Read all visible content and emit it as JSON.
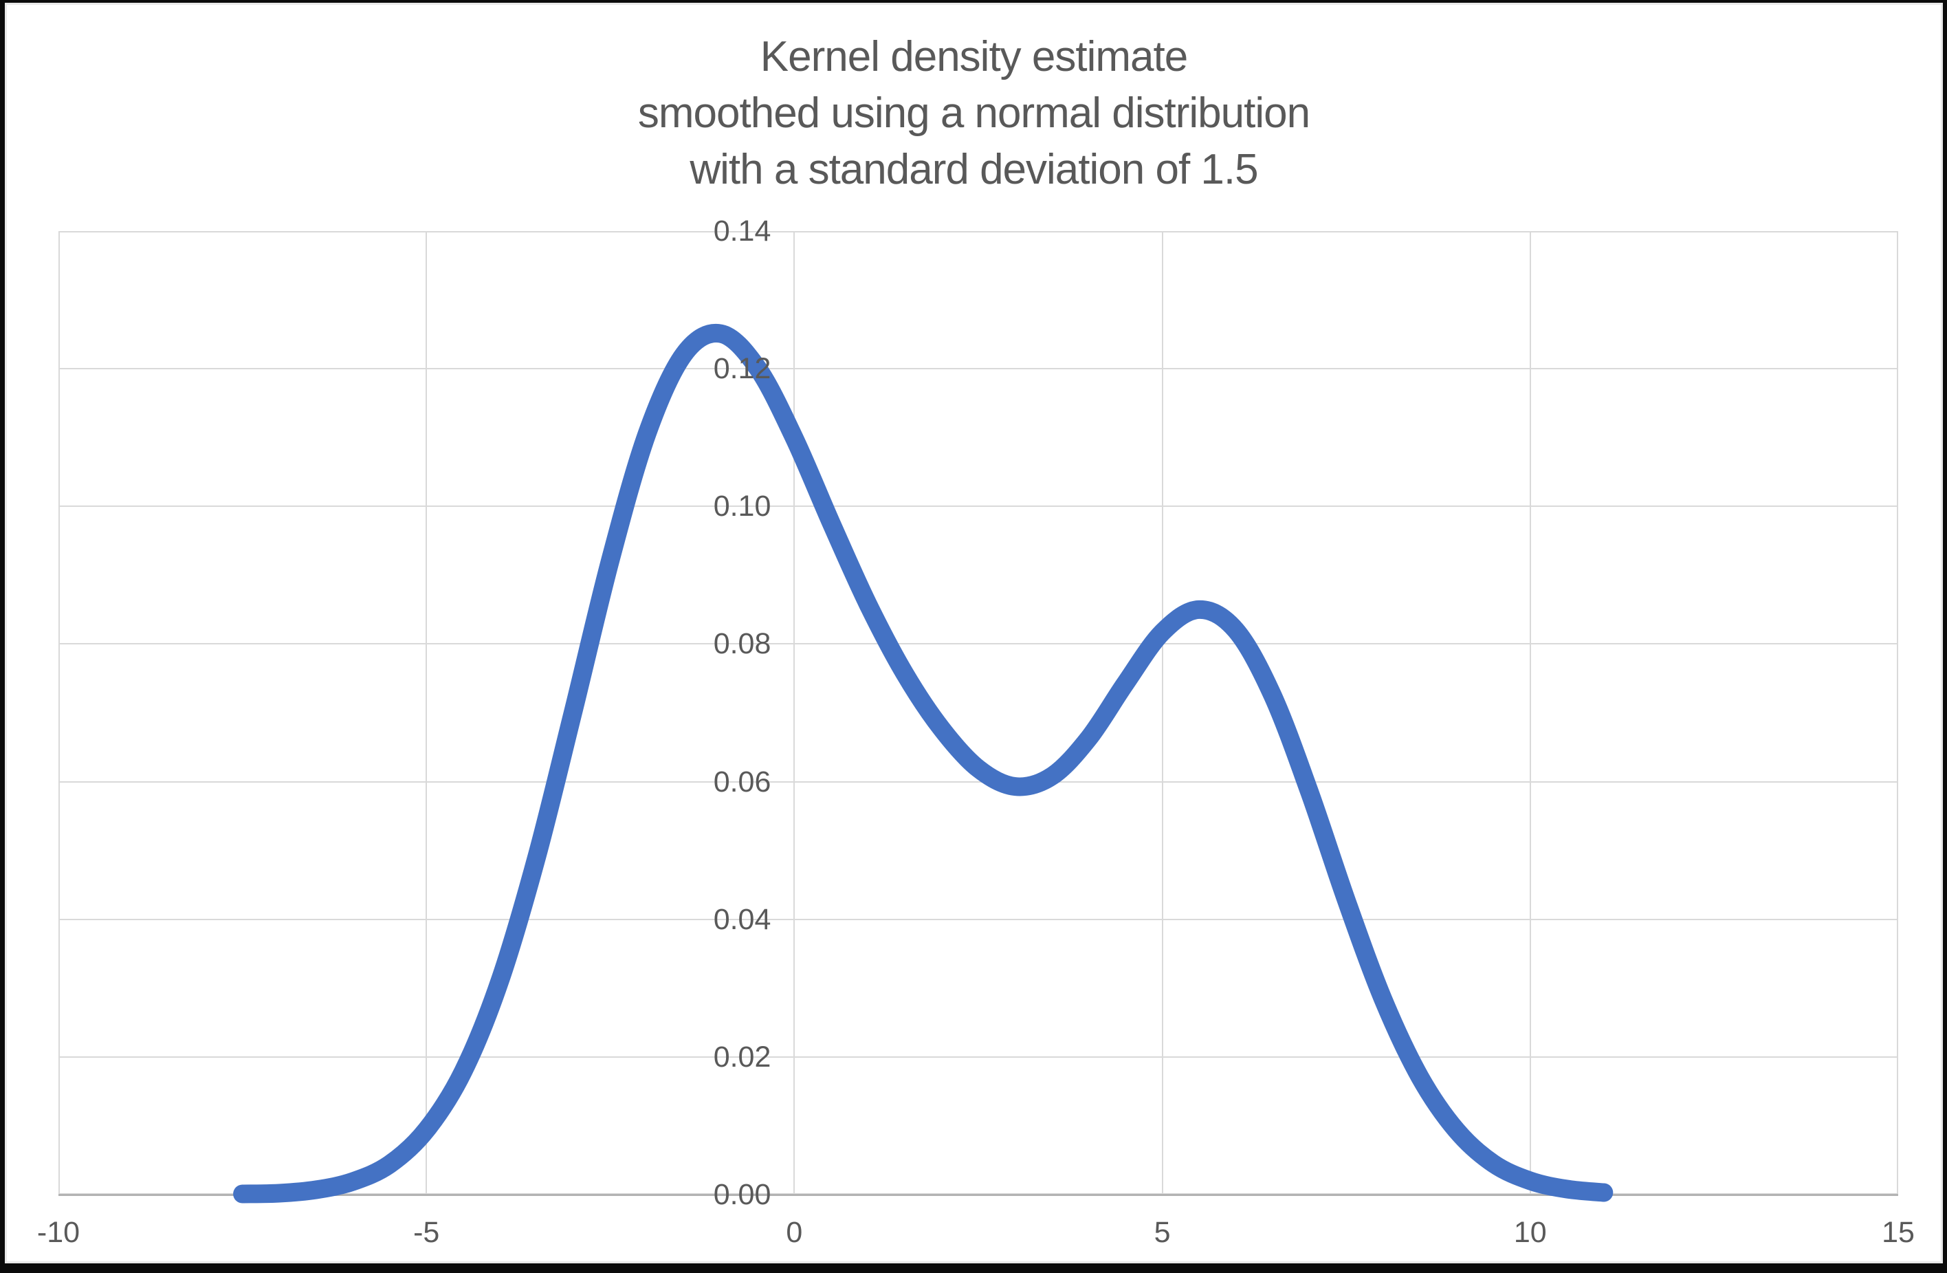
{
  "chart_data": {
    "type": "line",
    "title": "Kernel density estimate smoothed using a normal distribution with a standard deviation of 1.5",
    "title_lines": [
      "Kernel density estimate",
      "smoothed using a normal distribution",
      "with a standard deviation of 1.5"
    ],
    "xlabel": "",
    "ylabel": "",
    "xlim": [
      -10,
      15
    ],
    "ylim": [
      0,
      0.14
    ],
    "grid": true,
    "legend": "none",
    "x_tick_values": [
      -10,
      -5,
      0,
      5,
      10,
      15
    ],
    "x_tick_labels": [
      "-10",
      "-5",
      "0",
      "5",
      "10",
      "15"
    ],
    "y_tick_values": [
      0.14,
      0.12,
      0.1,
      0.08,
      0.06,
      0.04,
      0.02,
      0.0
    ],
    "y_tick_labels": [
      "0.14",
      "0.12",
      "0.10",
      "0.08",
      "0.06",
      "0.04",
      "0.02",
      "0.00"
    ],
    "colors": {
      "accent": "#4472C4",
      "gridline": "#D9D9D9",
      "axis": "#B3B3B3",
      "text": "#595959",
      "frame": "#000000",
      "background": "#FFFFFF"
    },
    "series": [
      {
        "name": "Kernel density estimate",
        "color": "#4472C4",
        "stroke_width": 27,
        "points": [
          [
            -7.5,
            0.0001
          ],
          [
            -7,
            0.0002
          ],
          [
            -6.5,
            0.0007
          ],
          [
            -6,
            0.0019
          ],
          [
            -5.5,
            0.0044
          ],
          [
            -5,
            0.0094
          ],
          [
            -4.5,
            0.0179
          ],
          [
            -4,
            0.0311
          ],
          [
            -3.5,
            0.0491
          ],
          [
            -3,
            0.0704
          ],
          [
            -2.5,
            0.0922
          ],
          [
            -2,
            0.1106
          ],
          [
            -1.5,
            0.1221
          ],
          [
            -1,
            0.1251
          ],
          [
            -0.5,
            0.1201
          ],
          [
            0,
            0.1099
          ],
          [
            0.5,
            0.0976
          ],
          [
            1,
            0.0858
          ],
          [
            1.5,
            0.0757
          ],
          [
            2,
            0.0677
          ],
          [
            2.5,
            0.0619
          ],
          [
            3,
            0.0593
          ],
          [
            3.5,
            0.0608
          ],
          [
            4,
            0.0663
          ],
          [
            4.5,
            0.0743
          ],
          [
            5,
            0.0817
          ],
          [
            5.5,
            0.085
          ],
          [
            6,
            0.082
          ],
          [
            6.5,
            0.0725
          ],
          [
            7,
            0.0585
          ],
          [
            7.5,
            0.0428
          ],
          [
            8,
            0.0284
          ],
          [
            8.5,
            0.0171
          ],
          [
            9,
            0.0093
          ],
          [
            9.5,
            0.0045
          ],
          [
            10,
            0.002
          ],
          [
            10.5,
            0.0008
          ],
          [
            11,
            0.0003
          ]
        ]
      }
    ]
  }
}
